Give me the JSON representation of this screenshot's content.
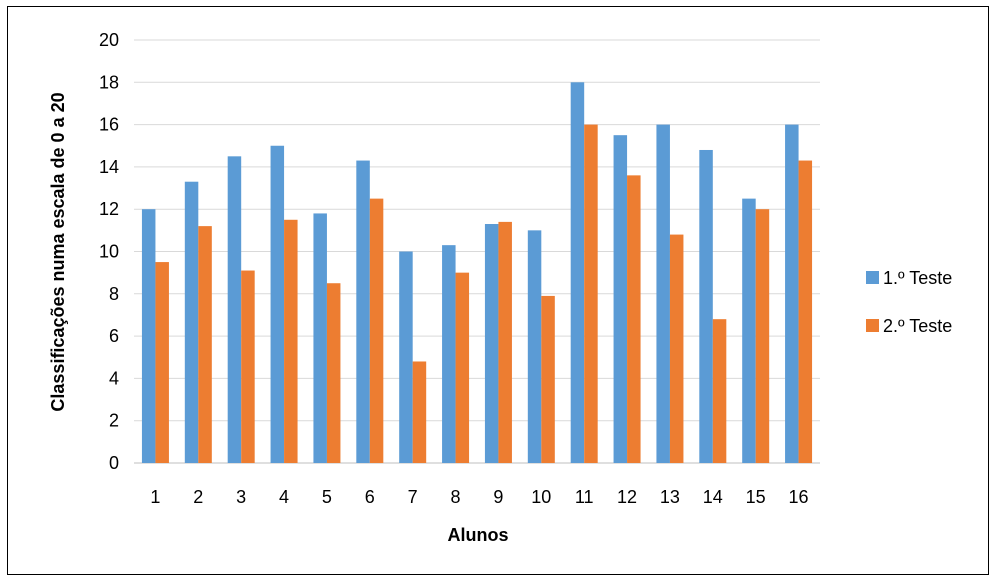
{
  "chart_data": {
    "type": "bar",
    "title": "",
    "xlabel": "Alunos",
    "ylabel": "Classificações numa escala de 0 a 20",
    "ylim": [
      0,
      20
    ],
    "yticks": [
      0,
      2,
      4,
      6,
      8,
      10,
      12,
      14,
      16,
      18,
      20
    ],
    "grid": true,
    "legend_position": "right",
    "categories": [
      "1",
      "2",
      "3",
      "4",
      "5",
      "6",
      "7",
      "8",
      "9",
      "10",
      "11",
      "12",
      "13",
      "14",
      "15",
      "16"
    ],
    "series": [
      {
        "name": "1.º Teste",
        "color": "#5B9BD5",
        "values": [
          12.0,
          13.3,
          14.5,
          15.0,
          11.8,
          14.3,
          10.0,
          10.3,
          11.3,
          11.0,
          18.0,
          15.5,
          16.0,
          14.8,
          12.5,
          16.0
        ]
      },
      {
        "name": "2.º Teste",
        "color": "#ED7D31",
        "values": [
          9.5,
          11.2,
          9.1,
          11.5,
          8.5,
          12.5,
          4.8,
          9.0,
          11.4,
          7.9,
          16.0,
          13.6,
          10.8,
          6.8,
          12.0,
          14.3
        ]
      }
    ]
  }
}
